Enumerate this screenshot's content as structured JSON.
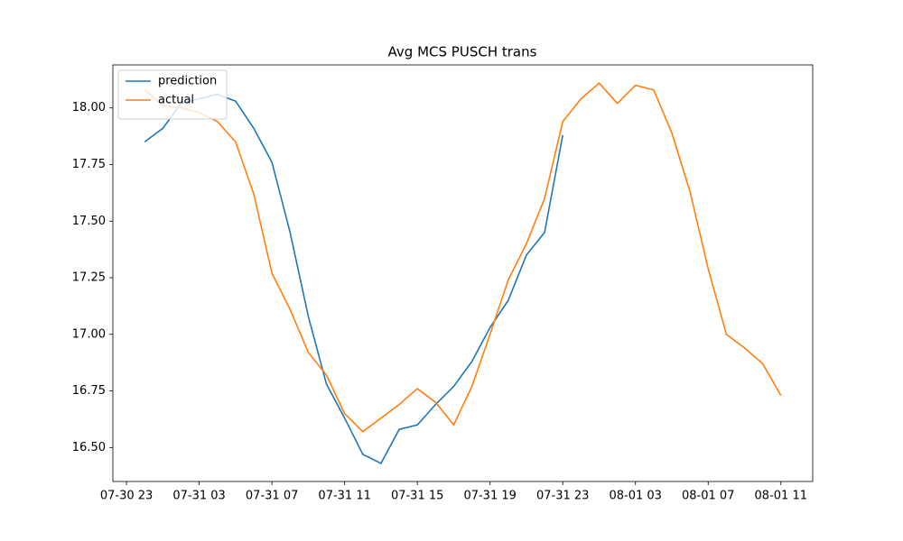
{
  "chart_data": {
    "type": "line",
    "title": "Avg MCS PUSCH trans",
    "x": [
      "07-31 00",
      "07-31 01",
      "07-31 02",
      "07-31 03",
      "07-31 04",
      "07-31 05",
      "07-31 06",
      "07-31 07",
      "07-31 08",
      "07-31 09",
      "07-31 10",
      "07-31 11",
      "07-31 12",
      "07-31 13",
      "07-31 14",
      "07-31 15",
      "07-31 16",
      "07-31 17",
      "07-31 18",
      "07-31 19",
      "07-31 20",
      "07-31 21",
      "07-31 22",
      "07-31 23",
      "08-01 00",
      "08-01 01",
      "08-01 02",
      "08-01 03",
      "08-01 04",
      "08-01 05",
      "08-01 06",
      "08-01 07",
      "08-01 08",
      "08-01 09",
      "08-01 10",
      "08-01 11"
    ],
    "series": [
      {
        "name": "prediction",
        "color": "#1f77b4",
        "values": [
          17.85,
          17.91,
          18.02,
          18.04,
          18.06,
          18.03,
          17.91,
          17.76,
          17.45,
          17.08,
          16.78,
          16.63,
          16.47,
          16.43,
          16.58,
          16.6,
          16.69,
          16.77,
          16.88,
          17.03,
          17.15,
          17.35,
          17.45,
          17.88,
          null,
          null,
          null,
          null,
          null,
          null,
          null,
          null,
          null,
          null,
          null,
          null
        ]
      },
      {
        "name": "actual",
        "color": "#ff7f0e",
        "values": [
          18.08,
          18.01,
          18.0,
          17.98,
          17.94,
          17.85,
          17.62,
          17.27,
          17.11,
          16.92,
          16.82,
          16.65,
          16.57,
          16.63,
          16.69,
          16.76,
          16.7,
          16.6,
          16.77,
          17.0,
          17.24,
          17.4,
          17.6,
          17.94,
          18.04,
          18.11,
          18.02,
          18.1,
          18.08,
          17.89,
          17.63,
          17.29,
          17.0,
          16.94,
          16.87,
          16.73
        ]
      }
    ],
    "xlim": [
      "07-30 22:15",
      "08-01 12:45"
    ],
    "xticks": [
      "07-30 23",
      "07-31 03",
      "07-31 07",
      "07-31 11",
      "07-31 15",
      "07-31 19",
      "07-31 23",
      "08-01 03",
      "08-01 07",
      "08-01 11"
    ],
    "ylim": [
      16.35,
      18.19
    ],
    "yticks": [
      {
        "value": 16.5,
        "label": "16.50"
      },
      {
        "value": 16.75,
        "label": "16.75"
      },
      {
        "value": 17,
        "label": "17.00"
      },
      {
        "value": 17.25,
        "label": "17.25"
      },
      {
        "value": 17.5,
        "label": "17.50"
      },
      {
        "value": 17.75,
        "label": "17.75"
      },
      {
        "value": 18,
        "label": "18.00"
      }
    ],
    "legend": "upper left"
  }
}
